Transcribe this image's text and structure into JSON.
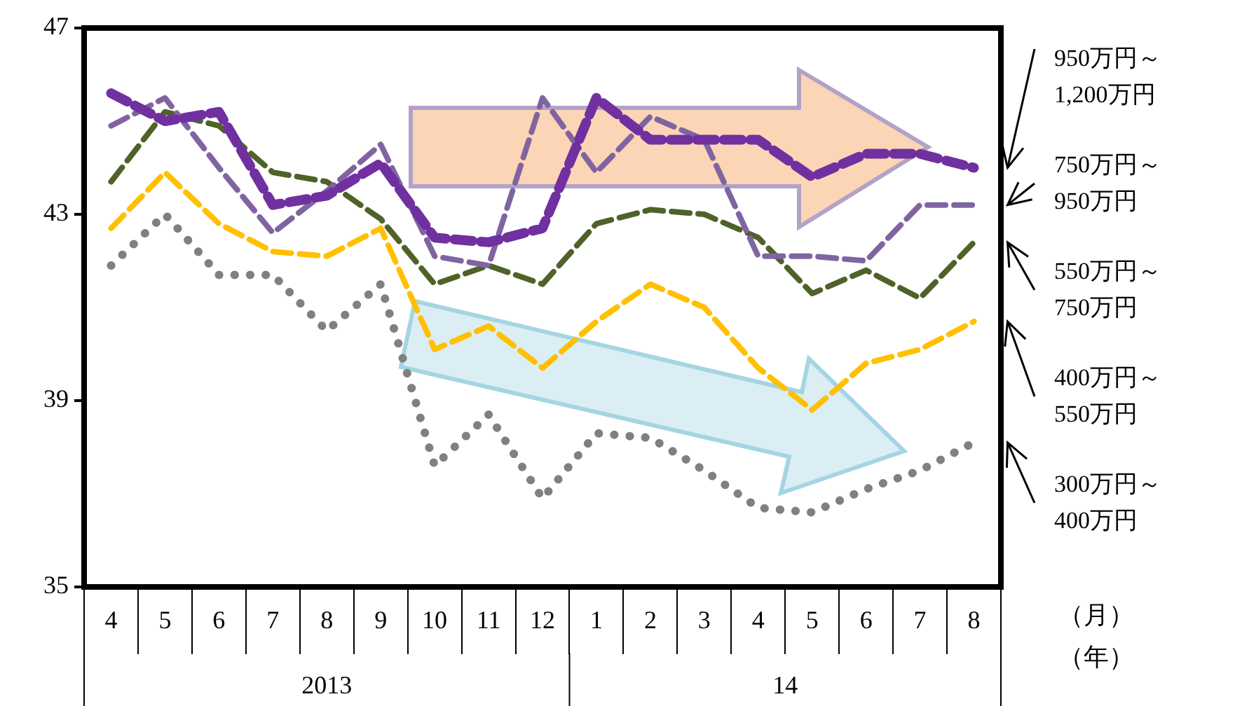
{
  "chart_data": {
    "type": "line",
    "categories": [
      "4",
      "5",
      "6",
      "7",
      "8",
      "9",
      "10",
      "11",
      "12",
      "1",
      "2",
      "3",
      "4",
      "5",
      "6",
      "7",
      "8"
    ],
    "series": [
      {
        "name": "950万円～1,200万円",
        "color": "#7030a0",
        "line_style": "dashed",
        "values": [
          45.6,
          45.0,
          45.2,
          43.2,
          43.4,
          44.1,
          42.5,
          42.4,
          42.7,
          45.5,
          44.6,
          44.6,
          44.6,
          43.8,
          44.3,
          44.3,
          44.0
        ]
      },
      {
        "name": "750万円～950万円",
        "color": "#8064a2",
        "line_style": "dashed",
        "values": [
          44.9,
          45.5,
          44.0,
          42.6,
          43.5,
          44.5,
          42.1,
          41.9,
          45.5,
          43.9,
          45.1,
          44.6,
          42.1,
          42.1,
          42.0,
          43.2,
          43.2
        ]
      },
      {
        "name": "550万円～750万円",
        "color": "#4f6228",
        "line_style": "dashed",
        "values": [
          43.7,
          45.2,
          44.9,
          43.9,
          43.7,
          42.9,
          41.5,
          41.9,
          41.5,
          42.8,
          43.1,
          43.0,
          42.5,
          41.3,
          41.8,
          41.2,
          42.4
        ]
      },
      {
        "name": "400万円～550万円",
        "color": "#ffc000",
        "line_style": "dashed",
        "values": [
          42.7,
          43.9,
          42.8,
          42.2,
          42.1,
          42.7,
          40.1,
          40.6,
          39.7,
          40.7,
          41.5,
          41.0,
          39.7,
          38.8,
          39.8,
          40.1,
          40.7
        ]
      },
      {
        "name": "300万円～400万円",
        "color": "#808080",
        "line_style": "dotted",
        "values": [
          41.9,
          43.0,
          41.7,
          41.7,
          40.5,
          41.5,
          37.6,
          38.7,
          36.9,
          38.3,
          38.2,
          37.5,
          36.7,
          36.6,
          37.1,
          37.5,
          38.1
        ]
      }
    ],
    "ylim": [
      35,
      47
    ],
    "yticks": [
      35,
      39,
      43,
      47
    ],
    "grid": false,
    "legend": false,
    "annotations": [
      "2013",
      "14",
      "（月）",
      "（年）"
    ]
  }
}
